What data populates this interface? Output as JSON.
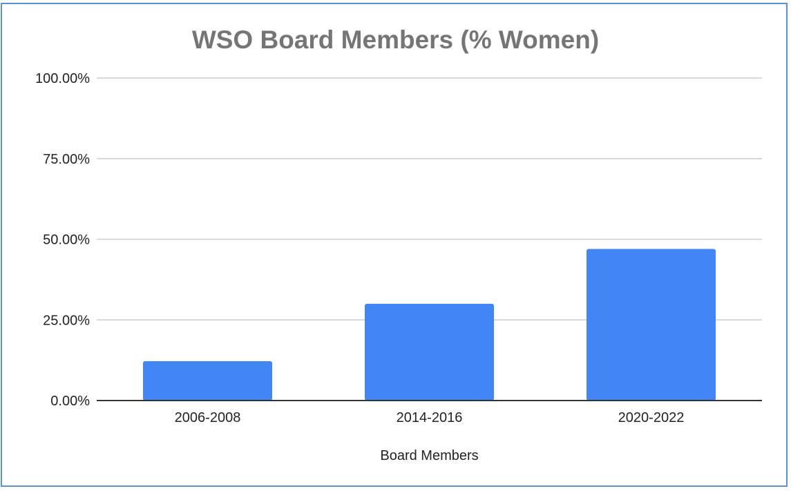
{
  "chart_data": {
    "type": "bar",
    "title": "WSO Board Members (% Women)",
    "xlabel": "Board Members",
    "ylabel": "",
    "categories": [
      "2006-2008",
      "2014-2016",
      "2020-2022"
    ],
    "series": [
      {
        "values": [
          12.2,
          30.0,
          47.0
        ]
      }
    ],
    "ylim": [
      0,
      100
    ],
    "yticks": [
      0,
      25,
      50,
      75,
      100
    ],
    "ytick_labels": [
      "0.00%",
      "25.00%",
      "50.00%",
      "75.00%",
      "100.00%"
    ],
    "grid": true,
    "legend": "none",
    "colors": {
      "bar": "#4285f4",
      "grid": "#cccccc",
      "axis": "#333333",
      "title": "#757575",
      "border": "#5b8fd6"
    }
  }
}
